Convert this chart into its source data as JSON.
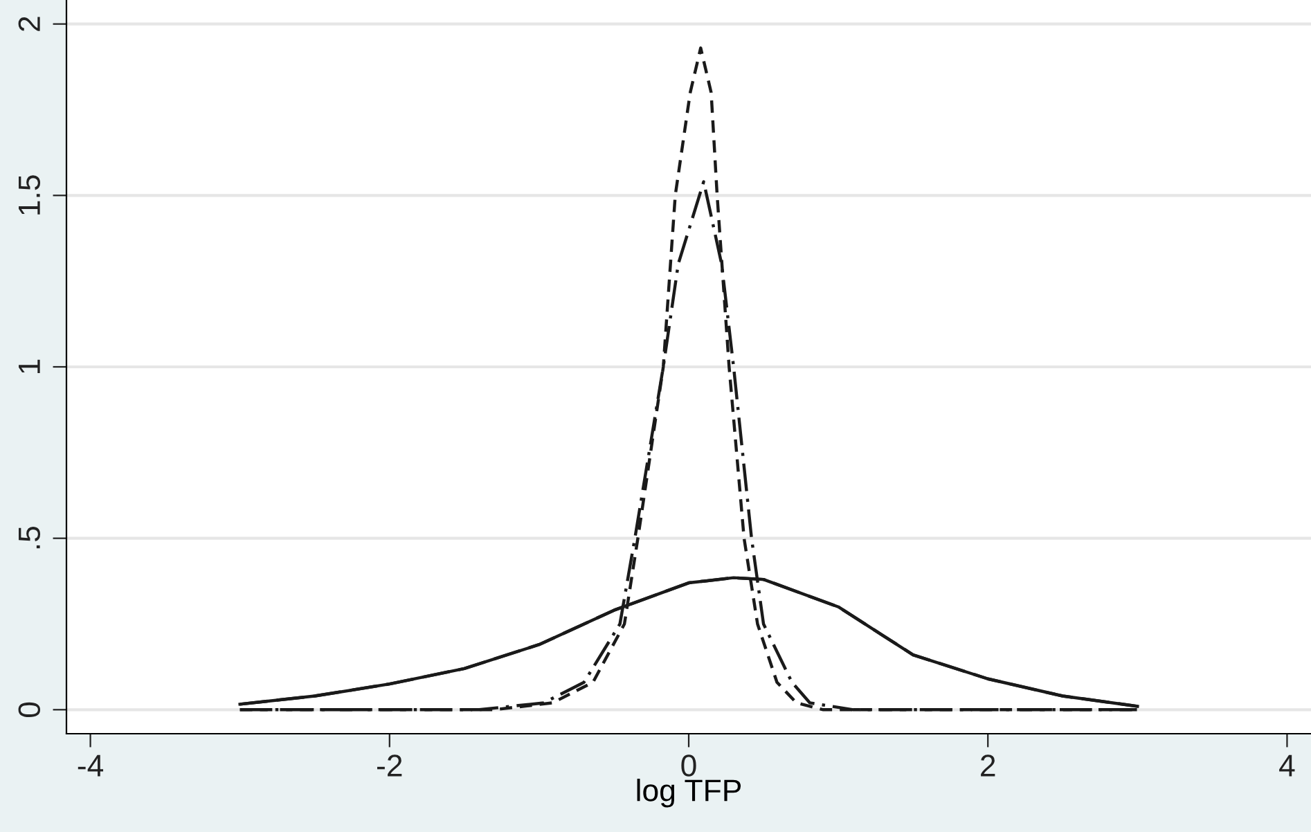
{
  "chart_data": {
    "type": "line",
    "xlabel": "log TFP",
    "xlim": [
      -4.16,
      4.16
    ],
    "ylim": [
      -0.07,
      2.07
    ],
    "xticks": [
      -4,
      -2,
      0,
      2,
      4
    ],
    "yticks": [
      0,
      {
        "value": 0.5,
        "label": ".5"
      },
      1,
      1.5,
      2
    ],
    "grid": "y",
    "legend": false,
    "marker": "none",
    "series": [
      {
        "color": "#1a1a1a",
        "line_style": "solid",
        "x": [
          -3,
          -2.5,
          -2,
          -1.5,
          -1,
          -0.5,
          0,
          0.3,
          0.5,
          1,
          1.5,
          2,
          2.5,
          3
        ],
        "values": [
          0.016,
          0.04,
          0.075,
          0.12,
          0.19,
          0.29,
          0.37,
          0.385,
          0.38,
          0.3,
          0.16,
          0.09,
          0.04,
          0.01
        ]
      },
      {
        "color": "#1a1a1a",
        "line_style": "longdash",
        "x": [
          -3,
          -2.5,
          -2,
          -1.5,
          -1,
          -0.5,
          0,
          0.3,
          0.5,
          1,
          1.5,
          2,
          2.5,
          3
        ],
        "values": [
          0.016,
          0.04,
          0.075,
          0.12,
          0.19,
          0.29,
          0.37,
          0.385,
          0.38,
          0.3,
          0.16,
          0.09,
          0.04,
          0.01
        ]
      },
      {
        "color": "#1a1a1a",
        "line_style": "dashed",
        "x": [
          -3,
          -2,
          -1.3,
          -0.91,
          -0.64,
          -0.43,
          -0.34,
          -0.17,
          -0.09,
          0.01,
          0.08,
          0.15,
          0.19,
          0.27,
          0.37,
          0.46,
          0.59,
          0.72,
          0.9,
          2,
          3
        ],
        "values": [
          0,
          0,
          0,
          0.02,
          0.08,
          0.25,
          0.5,
          1,
          1.5,
          1.8,
          1.93,
          1.8,
          1.5,
          1,
          0.5,
          0.25,
          0.08,
          0.02,
          0,
          0,
          0
        ]
      },
      {
        "color": "#1a1a1a",
        "line_style": "dashdot",
        "x": [
          -3,
          -2,
          -1.4,
          -0.97,
          -0.7,
          -0.46,
          -0.36,
          -0.17,
          -0.07,
          0.1,
          0.22,
          0.3,
          0.42,
          0.5,
          0.69,
          0.81,
          1.1,
          2,
          3
        ],
        "values": [
          0,
          0,
          0,
          0.02,
          0.08,
          0.25,
          0.5,
          1,
          1.3,
          1.54,
          1.3,
          1,
          0.5,
          0.25,
          0.08,
          0.02,
          0,
          0,
          0
        ]
      }
    ]
  }
}
